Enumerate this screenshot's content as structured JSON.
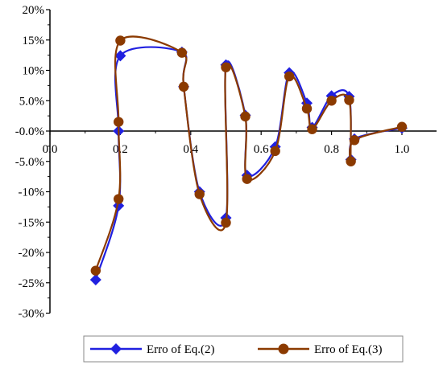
{
  "chart_data": {
    "type": "line",
    "title": "",
    "xlabel": "",
    "ylabel": "",
    "xlim": [
      0.0,
      1.0
    ],
    "ylim": [
      -30,
      20
    ],
    "x_ticks": [
      0.0,
      0.2,
      0.4,
      0.6,
      0.8,
      1.0
    ],
    "x_tick_labels": [
      "0.0",
      "0.2",
      "0.4",
      "0.6",
      "0.8",
      "1.0"
    ],
    "y_ticks": [
      20,
      15,
      10,
      5,
      0,
      -5,
      -10,
      -15,
      -20,
      -25,
      -30
    ],
    "y_tick_labels": [
      "20%",
      "15%",
      "10%",
      "5.0%",
      "-0.0%",
      "-5.0%",
      "-10%",
      "-15%",
      "-20%",
      "-25%",
      "-30%"
    ],
    "grid": false,
    "legend_position": "bottom",
    "series": [
      {
        "name": "Erro of Eq.(2)",
        "color": "#2020e0",
        "marker": "diamond",
        "points": [
          [
            0.13,
            -24.5
          ],
          [
            0.195,
            -12.3
          ],
          [
            0.195,
            0.0
          ],
          [
            0.2,
            12.4
          ],
          [
            0.375,
            13.0
          ],
          [
            0.38,
            7.3
          ],
          [
            0.425,
            -10.0
          ],
          [
            0.5,
            -14.3
          ],
          [
            0.5,
            10.9
          ],
          [
            0.555,
            2.6
          ],
          [
            0.56,
            -7.3
          ],
          [
            0.64,
            -2.6
          ],
          [
            0.68,
            9.6
          ],
          [
            0.73,
            4.6
          ],
          [
            0.745,
            0.6
          ],
          [
            0.8,
            5.8
          ],
          [
            0.85,
            5.7
          ],
          [
            0.855,
            -4.7
          ],
          [
            0.865,
            -1.3
          ],
          [
            1.0,
            0.5
          ]
        ]
      },
      {
        "name": "Erro of Eq.(3)",
        "color": "#8b3a00",
        "marker": "circle",
        "points": [
          [
            0.13,
            -23.0
          ],
          [
            0.195,
            -11.2
          ],
          [
            0.195,
            1.5
          ],
          [
            0.2,
            14.9
          ],
          [
            0.375,
            12.9
          ],
          [
            0.38,
            7.3
          ],
          [
            0.425,
            -10.4
          ],
          [
            0.5,
            -15.1
          ],
          [
            0.5,
            10.5
          ],
          [
            0.555,
            2.4
          ],
          [
            0.56,
            -7.9
          ],
          [
            0.64,
            -3.3
          ],
          [
            0.68,
            9.0
          ],
          [
            0.73,
            3.7
          ],
          [
            0.745,
            0.3
          ],
          [
            0.8,
            5.0
          ],
          [
            0.85,
            5.1
          ],
          [
            0.855,
            -5.0
          ],
          [
            0.865,
            -1.5
          ],
          [
            1.0,
            0.7
          ]
        ]
      }
    ]
  }
}
